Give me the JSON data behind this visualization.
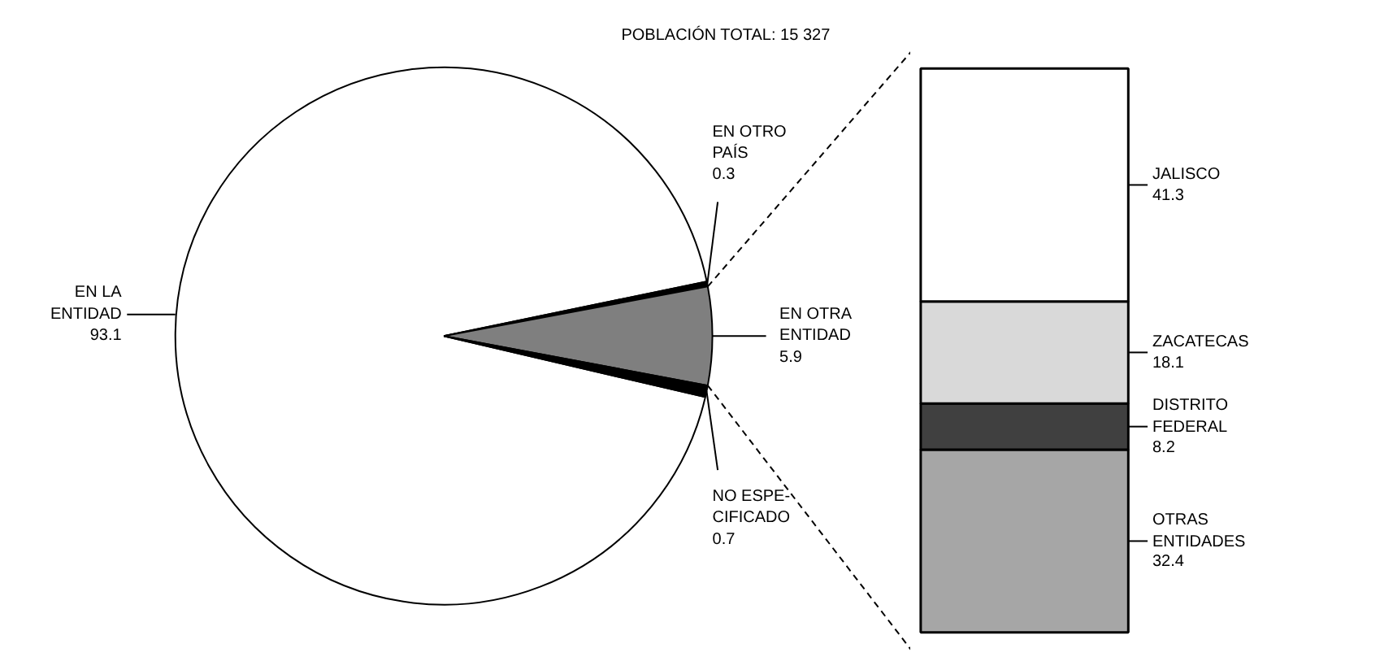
{
  "chart_data": [
    {
      "type": "pie",
      "title": "POBLACIÓN TOTAL: 15 327",
      "categories": [
        "EN LA\nENTIDAD",
        "EN OTRO\nPAÍS",
        "EN OTRA\nENTIDAD",
        "NO ESPE-\nCIFICADO"
      ],
      "values": [
        93.1,
        0.3,
        5.9,
        0.7
      ],
      "colors": [
        "#ffffff",
        "#000000",
        "#7f7f7f",
        "#000000"
      ],
      "data_labels": true
    },
    {
      "type": "bar",
      "stacked": true,
      "categories": [
        null
      ],
      "legend": "right",
      "series": [
        {
          "name": "OTRAS\nENTIDADES",
          "color": "#a6a6a6",
          "values": [
            32.4
          ],
          "value_labels": [
            "32.4"
          ]
        },
        {
          "name": "DISTRITO\nFEDERAL",
          "color": "#404040",
          "values": [
            8.2
          ],
          "value_labels": [
            "8.2"
          ]
        },
        {
          "name": "ZACATECAS",
          "color": "#d9d9d9",
          "values": [
            18.1
          ],
          "value_labels": [
            "18.1"
          ]
        },
        {
          "name": "JALISCO",
          "color": "#ffffff",
          "values": [
            41.3
          ],
          "value_labels": [
            "41.3"
          ]
        }
      ]
    }
  ]
}
